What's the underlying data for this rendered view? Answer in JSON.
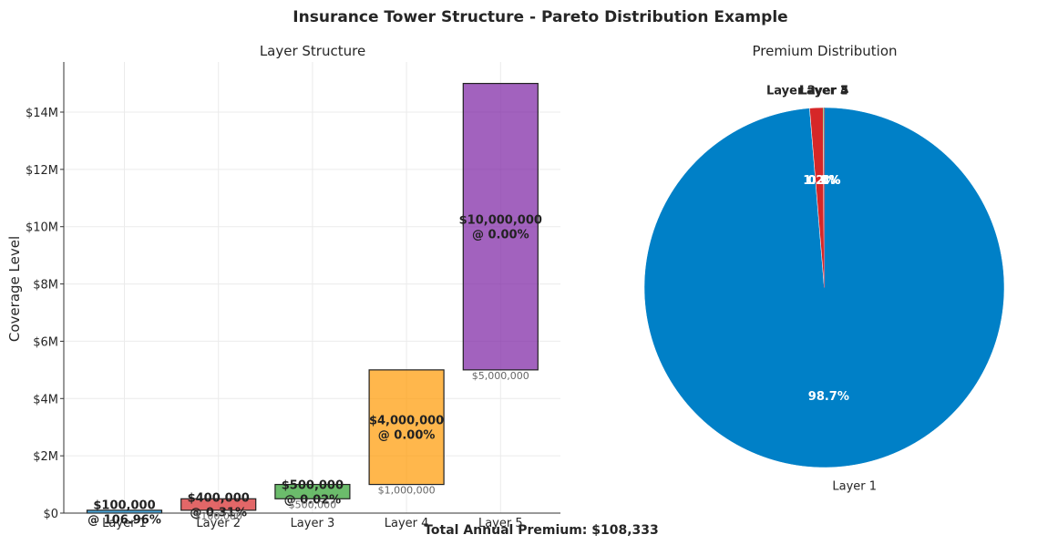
{
  "suptitle": "Insurance Tower Structure - Pareto Distribution Example",
  "footer": "Total Annual Premium: $108,333",
  "chart_data": [
    {
      "type": "bar",
      "title": "Layer Structure",
      "xlabel": "",
      "ylabel": "Coverage Level",
      "ylim": [
        0,
        15750000
      ],
      "yticks": [
        0,
        2000000,
        4000000,
        6000000,
        8000000,
        10000000,
        12000000,
        14000000
      ],
      "ytick_labels": [
        "$0",
        "$2M",
        "$4M",
        "$6M",
        "$8M",
        "$10M",
        "$12M",
        "$14M"
      ],
      "grid": true,
      "categories": [
        "Layer 1",
        "Layer 2",
        "Layer 3",
        "Layer 4",
        "Layer 5"
      ],
      "bottoms": [
        0,
        100000,
        500000,
        1000000,
        5000000
      ],
      "values": [
        100000,
        400000,
        500000,
        4000000,
        10000000
      ],
      "limit_labels": [
        "$100,000",
        "$400,000",
        "$500,000",
        "$4,000,000",
        "$10,000,000"
      ],
      "rate_labels": [
        "@ 106.96%",
        "@ 0.31%",
        "@ 0.02%",
        "@ 0.00%",
        "@ 0.00%"
      ],
      "attachment_labels": [
        "",
        "$100,000",
        "$500,000",
        "$1,000,000",
        "$5,000,000"
      ],
      "colors": [
        "#0080C7",
        "#D62728",
        "#2CA02C",
        "#FF9800",
        "#7B1FA2"
      ]
    },
    {
      "type": "pie",
      "title": "Premium Distribution",
      "categories": [
        "Layer 1",
        "Layer 2",
        "Layer 3",
        "Layer 4",
        "Layer 5"
      ],
      "values": [
        98.7,
        1.2,
        0.1,
        0.0,
        0.0
      ],
      "pct_labels": [
        "98.7%",
        "1.2%",
        "0.1%",
        "0.0%",
        "0.0%"
      ],
      "colors": [
        "#0080C7",
        "#D62728",
        "#2CA02C",
        "#FF9800",
        "#7B1FA2"
      ]
    }
  ]
}
